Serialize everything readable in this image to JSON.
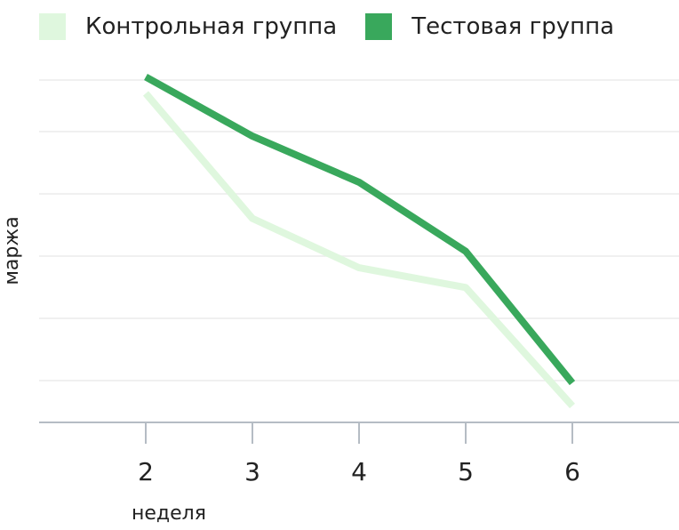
{
  "legend": {
    "items": [
      {
        "label": "Контрольная группа",
        "color": "#dff7de"
      },
      {
        "label": "Тестовая группа",
        "color": "#39a85c"
      }
    ]
  },
  "colors": {
    "grid": "#ececec",
    "axis": "#b5bcc4",
    "text": "#222222"
  },
  "chart_data": {
    "type": "line",
    "x": [
      2,
      3,
      4,
      5,
      6
    ],
    "xlabel": "неделя",
    "ylabel": "маржа",
    "xlim": [
      1,
      7
    ],
    "ylim": [
      0,
      5.5
    ],
    "grid": true,
    "legend_position": "top-left",
    "x_tick_labels": [
      "2",
      "3",
      "4",
      "5",
      "6"
    ],
    "y_tick_labels": [],
    "series": [
      {
        "name": "Контрольная группа",
        "color": "#dff7de",
        "values": [
          5.0,
          3.1,
          2.35,
          2.05,
          0.25
        ]
      },
      {
        "name": "Тестовая группа",
        "color": "#39a85c",
        "values": [
          5.25,
          4.35,
          3.65,
          2.6,
          0.6
        ]
      }
    ]
  }
}
